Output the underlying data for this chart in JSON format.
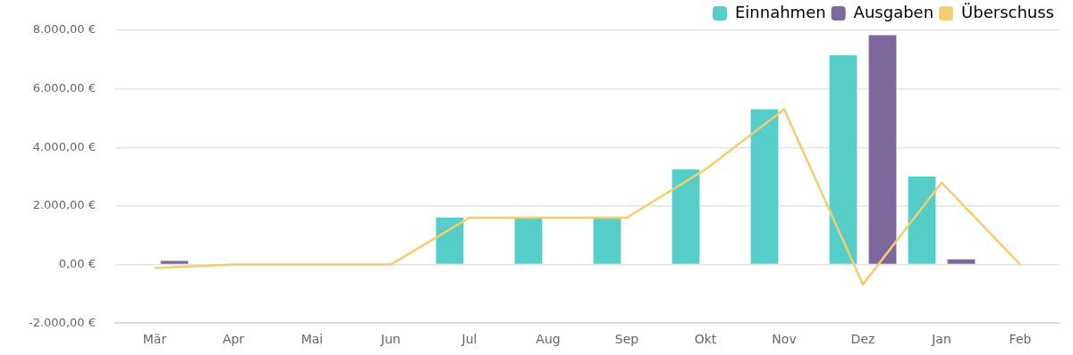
{
  "chart_data": {
    "type": "bar",
    "categories": [
      "Mär",
      "Apr",
      "Mai",
      "Jun",
      "Jul",
      "Aug",
      "Sep",
      "Okt",
      "Nov",
      "Dez",
      "Jan",
      "Feb"
    ],
    "series": [
      {
        "name": "Einnahmen",
        "color": "#55cdc9",
        "values": [
          0,
          0,
          0,
          0,
          1600,
          1600,
          1600,
          3250,
          5300,
          7150,
          3000,
          0
        ]
      },
      {
        "name": "Ausgaben",
        "color": "#7e679c",
        "values": [
          120,
          0,
          0,
          0,
          0,
          0,
          0,
          0,
          0,
          7830,
          180,
          0
        ]
      },
      {
        "name": "Überschuss",
        "type": "line",
        "color": "#f5cc6e",
        "values": [
          -120,
          0,
          0,
          0,
          1600,
          1600,
          1600,
          3250,
          5300,
          -680,
          2800,
          0
        ]
      }
    ],
    "ylim": [
      -2000,
      8000
    ],
    "yticks": [
      {
        "value": -2000,
        "label": "-2.000,00 €"
      },
      {
        "value": 0,
        "label": "0,00 €"
      },
      {
        "value": 2000,
        "label": "2.000,00 €"
      },
      {
        "value": 4000,
        "label": "4.000,00 €"
      },
      {
        "value": 6000,
        "label": "6.000,00 €"
      },
      {
        "value": 8000,
        "label": "8.000,00 €"
      }
    ],
    "grid": "y",
    "legend": "top right",
    "marker": "none",
    "line_style": "solid"
  }
}
